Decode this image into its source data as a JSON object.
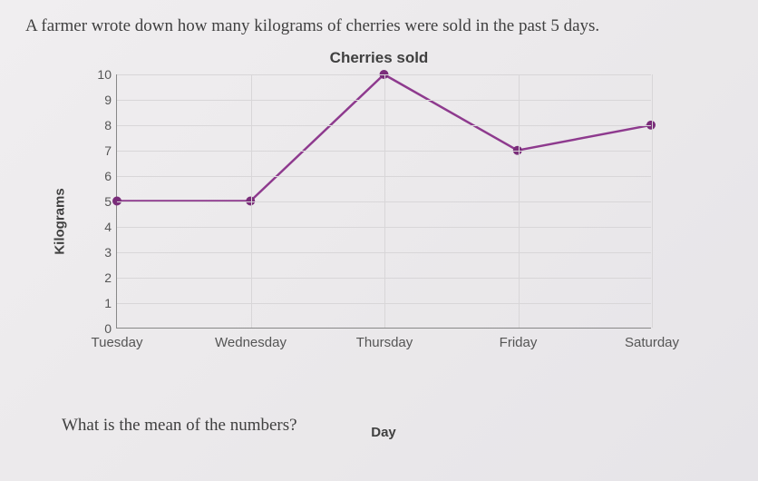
{
  "prompt": "A farmer wrote down how many kilograms of cherries were sold in the past 5 days.",
  "question": "What is the mean of the numbers?",
  "chart": {
    "type": "line",
    "title": "Cherries sold",
    "xlabel": "Day",
    "ylabel": "Kilograms",
    "categories": [
      "Tuesday",
      "Wednesday",
      "Thursday",
      "Friday",
      "Saturday"
    ],
    "values": [
      5,
      5,
      10,
      7,
      8
    ],
    "ylim": [
      0,
      10
    ],
    "ytick_step": 1,
    "line_color": "#8e3a8e",
    "line_width": 2.5,
    "marker_color": "#7a2d7a",
    "marker_radius": 5,
    "grid_color": "#d8d6d8",
    "axis_color": "#888888",
    "background_color": "transparent",
    "text_color": "#555555",
    "title_fontsize": 17,
    "label_fontsize": 15,
    "tick_fontsize": 14
  }
}
